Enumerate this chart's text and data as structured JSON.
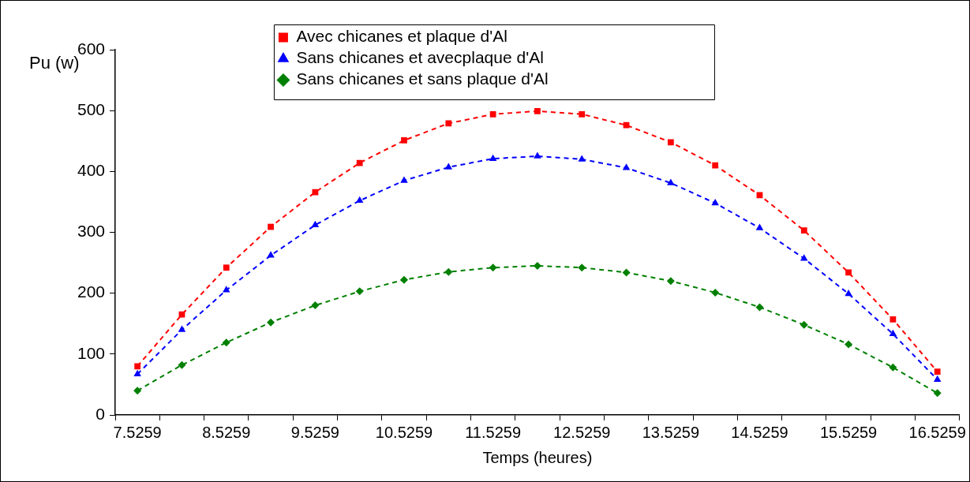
{
  "chart_data": {
    "type": "line",
    "xlabel": "Temps (heures)",
    "ylabel": "Pu (w)",
    "categories": [
      "7.5259",
      null,
      "8.5259",
      null,
      "9.5259",
      null,
      "10.5259",
      null,
      "11.5259",
      null,
      "12.5259",
      null,
      "13.5259",
      null,
      "14.5259",
      null,
      "15.5259",
      null,
      "16.5259"
    ],
    "series": [
      {
        "name": "Avec chicanes et plaque d'Al",
        "color": "#ff0000",
        "marker": "square",
        "values": [
          80,
          165,
          242,
          309,
          366,
          414,
          451,
          479,
          494,
          499,
          494,
          476,
          448,
          410,
          361,
          303,
          234,
          157,
          71
        ]
      },
      {
        "name": "Sans chicanes et avecplaque d'Al",
        "color": "#0000ff",
        "marker": "triangle",
        "values": [
          67,
          140,
          205,
          262,
          312,
          352,
          385,
          407,
          421,
          425,
          420,
          406,
          381,
          348,
          307,
          257,
          199,
          133,
          58
        ]
      },
      {
        "name": "Sans chicanes et sans plaque d'Al",
        "color": "#008000",
        "marker": "diamond",
        "values": [
          40,
          82,
          119,
          152,
          180,
          203,
          222,
          235,
          242,
          245,
          242,
          234,
          220,
          201,
          177,
          148,
          116,
          78,
          36
        ]
      }
    ],
    "ylim": [
      0,
      600
    ],
    "yticks": [
      0,
      100,
      200,
      300,
      400,
      500,
      600
    ],
    "grid": false,
    "legend": "top",
    "line_style": "dashed"
  }
}
